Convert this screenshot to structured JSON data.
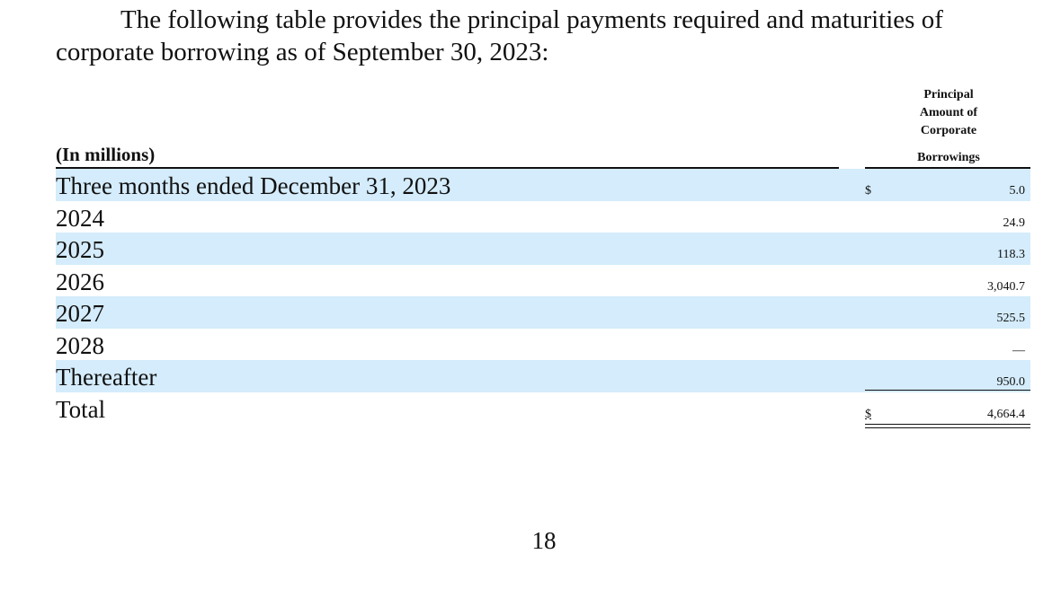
{
  "intro_text": "The following table provides the principal payments required and maturities of corporate borrowing as of September 30, 2023:",
  "table": {
    "unit_label": "(In millions)",
    "column_header_lines": [
      "Principal",
      "Amount of",
      "Corporate"
    ],
    "column_header_last": "Borrowings",
    "rows": [
      {
        "label": "Three months ended December 31, 2023",
        "currency": "$",
        "value": "5.0"
      },
      {
        "label": "2024",
        "currency": "",
        "value": "24.9"
      },
      {
        "label": "2025",
        "currency": "",
        "value": "118.3"
      },
      {
        "label": "2026",
        "currency": "",
        "value": "3,040.7"
      },
      {
        "label": "2027",
        "currency": "",
        "value": "525.5"
      },
      {
        "label": "2028",
        "currency": "",
        "value": "—"
      },
      {
        "label": "Thereafter",
        "currency": "",
        "value": "950.0"
      }
    ],
    "total": {
      "label": "Total",
      "currency": "$",
      "value": "4,664.4"
    }
  },
  "page_number": "18",
  "colors": {
    "row_shade": "#d4ecfb",
    "text": "#111111"
  }
}
